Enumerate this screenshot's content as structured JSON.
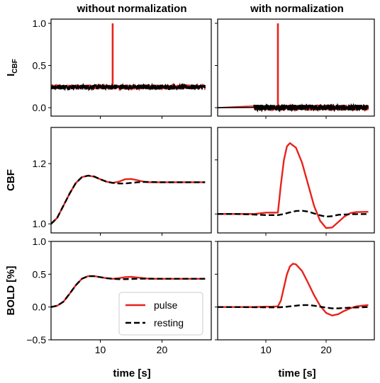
{
  "colors": {
    "pulse": "#e8221b",
    "resting": "#000000"
  },
  "columns": [
    "without normalization",
    "with normalization"
  ],
  "legend": {
    "pulse": "pulse",
    "resting": "resting"
  },
  "xlabel": "time [s]",
  "chart_data": [
    {
      "type": "line",
      "row": 0,
      "col": 0,
      "ylabel_main": "I",
      "ylabel_sub": "CBF",
      "xlim": [
        2,
        28
      ],
      "ylim": [
        -0.1,
        1.05
      ],
      "yticks": [
        0.0,
        0.5,
        1.0
      ],
      "ytick_labels": [
        "0.0",
        "0.5",
        "1.0"
      ],
      "xticks": [
        10,
        20
      ],
      "xtick_labels": [
        "",
        ""
      ],
      "series": [
        {
          "name": "pulse",
          "style": "noise",
          "x": [
            2,
            12,
            12,
            12,
            28
          ],
          "y": [
            0.245,
            0.245,
            1.0,
            0.245,
            0.245
          ],
          "noise": 0.03
        },
        {
          "name": "resting",
          "style": "noise",
          "x": [
            2,
            28
          ],
          "y": [
            0.245,
            0.245
          ],
          "noise": 0.03
        }
      ]
    },
    {
      "type": "line",
      "row": 0,
      "col": 1,
      "xlim": [
        2,
        28
      ],
      "ylim": [
        -0.1,
        1.05
      ],
      "yticks": [
        0.0,
        0.5,
        1.0
      ],
      "ytick_labels": [
        "",
        "",
        ""
      ],
      "xticks": [
        10,
        20
      ],
      "xtick_labels": [
        "",
        ""
      ],
      "series": [
        {
          "name": "pulse",
          "style": "noise",
          "x": [
            2,
            12,
            12,
            12,
            28
          ],
          "y": [
            0.0,
            0.0,
            1.0,
            0.0,
            0.0
          ],
          "noise": 0.035,
          "noise_start": 8
        },
        {
          "name": "resting",
          "style": "noise",
          "x": [
            2,
            28
          ],
          "y": [
            0.0,
            0.0
          ],
          "noise": 0.035,
          "noise_start": 8
        }
      ]
    },
    {
      "type": "line",
      "row": 1,
      "col": 0,
      "ylabel_main": "CBF",
      "xlim": [
        2,
        28
      ],
      "ylim": [
        0.97,
        1.32
      ],
      "yticks": [
        1.0,
        1.2
      ],
      "ytick_labels": [
        "1.0",
        "1.2"
      ],
      "xticks": [
        10,
        20
      ],
      "xtick_labels": [
        "",
        ""
      ],
      "series": [
        {
          "name": "pulse",
          "x": [
            2,
            3,
            4,
            5,
            6,
            7,
            8,
            9,
            10,
            11,
            12,
            13,
            14,
            15,
            16,
            17,
            18,
            20,
            22,
            25,
            27
          ],
          "y": [
            1.0,
            1.02,
            1.06,
            1.1,
            1.135,
            1.155,
            1.16,
            1.157,
            1.148,
            1.14,
            1.136,
            1.14,
            1.148,
            1.149,
            1.145,
            1.14,
            1.138,
            1.138,
            1.138,
            1.138,
            1.138
          ]
        },
        {
          "name": "resting",
          "x": [
            2,
            3,
            4,
            5,
            6,
            7,
            8,
            9,
            10,
            11,
            12,
            13,
            14,
            15,
            16,
            17,
            18,
            20,
            22,
            25,
            27
          ],
          "y": [
            1.0,
            1.02,
            1.06,
            1.1,
            1.135,
            1.155,
            1.16,
            1.157,
            1.148,
            1.14,
            1.136,
            1.134,
            1.134,
            1.136,
            1.138,
            1.139,
            1.139,
            1.138,
            1.138,
            1.138,
            1.138
          ]
        }
      ]
    },
    {
      "type": "line",
      "row": 1,
      "col": 1,
      "xlim": [
        2,
        28
      ],
      "ylim": [
        0.93,
        1.32
      ],
      "yticks": [
        1.0,
        1.2
      ],
      "ytick_labels": [
        "",
        ""
      ],
      "xticks": [
        10,
        20
      ],
      "xtick_labels": [
        "",
        ""
      ],
      "series": [
        {
          "name": "pulse",
          "x": [
            2,
            5,
            8,
            10,
            11,
            12,
            12.5,
            13,
            13.5,
            14,
            15,
            16,
            17,
            18,
            19,
            20,
            21,
            22,
            23,
            24,
            25,
            27
          ],
          "y": [
            1.0,
            1.0,
            1.0,
            1.005,
            1.005,
            1.005,
            1.11,
            1.2,
            1.25,
            1.262,
            1.245,
            1.19,
            1.11,
            1.03,
            0.975,
            0.948,
            0.95,
            0.97,
            0.99,
            1.003,
            1.007,
            1.008
          ]
        },
        {
          "name": "resting",
          "x": [
            2,
            5,
            8,
            10,
            12,
            13,
            14,
            15,
            16,
            17,
            18,
            19,
            20,
            21,
            22,
            24,
            27
          ],
          "y": [
            1.0,
            1.0,
            0.998,
            0.996,
            0.996,
            1.0,
            1.006,
            1.011,
            1.012,
            1.009,
            1.002,
            0.995,
            0.99,
            0.992,
            0.997,
            0.999,
            1.0
          ]
        }
      ]
    },
    {
      "type": "line",
      "row": 2,
      "col": 0,
      "ylabel_main": "BOLD [%]",
      "xlim": [
        2,
        28
      ],
      "ylim": [
        -0.5,
        1.0
      ],
      "yticks": [
        -0.5,
        0.0,
        0.5,
        1.0
      ],
      "ytick_labels": [
        "−0.5",
        "0.0",
        "0.5",
        "1.0"
      ],
      "xticks": [
        10,
        20
      ],
      "xtick_labels": [
        "10",
        "20"
      ],
      "series": [
        {
          "name": "pulse",
          "x": [
            2,
            3,
            4,
            5,
            6,
            7,
            8,
            9,
            10,
            11,
            12,
            13,
            14,
            15,
            16,
            17,
            18,
            20,
            22,
            25,
            27
          ],
          "y": [
            0.0,
            0.02,
            0.08,
            0.2,
            0.33,
            0.43,
            0.47,
            0.47,
            0.455,
            0.44,
            0.43,
            0.44,
            0.455,
            0.46,
            0.45,
            0.44,
            0.43,
            0.43,
            0.43,
            0.43,
            0.43
          ]
        },
        {
          "name": "resting",
          "x": [
            2,
            3,
            4,
            5,
            6,
            7,
            8,
            9,
            10,
            11,
            12,
            13,
            14,
            15,
            16,
            17,
            18,
            20,
            22,
            25,
            27
          ],
          "y": [
            0.0,
            0.02,
            0.08,
            0.2,
            0.33,
            0.43,
            0.47,
            0.47,
            0.455,
            0.44,
            0.43,
            0.425,
            0.425,
            0.428,
            0.43,
            0.432,
            0.432,
            0.43,
            0.43,
            0.43,
            0.43
          ]
        }
      ]
    },
    {
      "type": "line",
      "row": 2,
      "col": 1,
      "xlim": [
        2,
        28
      ],
      "ylim": [
        -0.5,
        1.0
      ],
      "yticks": [
        -0.5,
        0.0,
        0.5,
        1.0
      ],
      "ytick_labels": [
        "",
        "",
        "",
        ""
      ],
      "xticks": [
        10,
        20
      ],
      "xtick_labels": [
        "10",
        "20"
      ],
      "series": [
        {
          "name": "pulse",
          "x": [
            2,
            5,
            8,
            10,
            11,
            12,
            12.5,
            13,
            13.5,
            14,
            14.5,
            15,
            16,
            17,
            18,
            19,
            20,
            21,
            22,
            23,
            24,
            25,
            27
          ],
          "y": [
            0.0,
            0.0,
            0.0,
            0.005,
            0.005,
            0.01,
            0.1,
            0.3,
            0.5,
            0.62,
            0.66,
            0.65,
            0.55,
            0.37,
            0.18,
            0.02,
            -0.09,
            -0.13,
            -0.11,
            -0.06,
            -0.02,
            0.01,
            0.03
          ]
        },
        {
          "name": "resting",
          "x": [
            2,
            5,
            8,
            10,
            12,
            13,
            14,
            15,
            16,
            17,
            18,
            19,
            20,
            21,
            22,
            24,
            27
          ],
          "y": [
            0.0,
            0.0,
            -0.003,
            -0.005,
            -0.005,
            0.0,
            0.01,
            0.02,
            0.03,
            0.03,
            0.02,
            0.005,
            -0.01,
            -0.02,
            -0.02,
            -0.01,
            0.0
          ]
        }
      ]
    }
  ]
}
